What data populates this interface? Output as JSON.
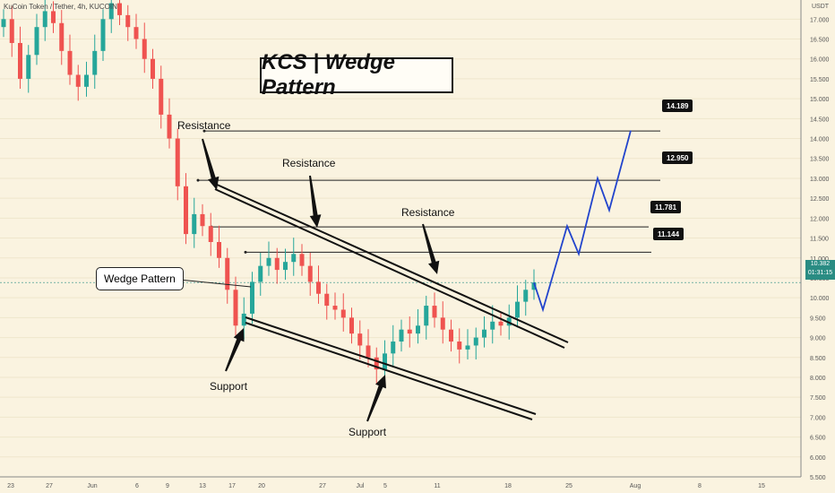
{
  "chart": {
    "ticker": "KuCoin Token / Tether, 4h, KUCOIN",
    "title": "KCS | Wedge Pattern",
    "quote_unit": "USDT",
    "wedge_label": "Wedge Pattern",
    "callouts": [
      "Resistance",
      "Resistance",
      "Resistance",
      "Support",
      "Support"
    ],
    "price_tags": [
      "14.189",
      "12.950",
      "11.781",
      "11.144"
    ],
    "current_price": "10.382",
    "countdown": "01:31:15",
    "projection_color": "#2244cc",
    "bull_color": "#26a69a",
    "bear_color": "#ef5350"
  },
  "chart_data": {
    "type": "candlestick",
    "title": "KCS | Wedge Pattern",
    "symbol": "KuCoin Token / Tether",
    "timeframe": "4h",
    "exchange": "KUCOIN",
    "y_ticks": [
      5.5,
      6.0,
      6.5,
      7.0,
      7.5,
      8.0,
      8.5,
      9.0,
      9.5,
      10.0,
      10.5,
      11.0,
      11.5,
      12.0,
      12.5,
      13.0,
      13.5,
      14.0,
      14.5,
      15.0,
      15.5,
      16.0,
      16.5,
      17.0
    ],
    "y_tick_labels": [
      "5.500",
      "6.000",
      "6.500",
      "7.000",
      "7.500",
      "8.000",
      "8.500",
      "9.000",
      "9.500",
      "10.000",
      "10.500",
      "11.000",
      "11.500",
      "12.000",
      "12.500",
      "13.000",
      "13.500",
      "14.000",
      "14.500",
      "15.000",
      "15.500",
      "16.000",
      "16.500",
      "17.000"
    ],
    "x_tick_labels": [
      "23",
      "27",
      "Jun",
      "6",
      "9",
      "13",
      "17",
      "20",
      "27",
      "Jul",
      "5",
      "11",
      "18",
      "25",
      "Aug",
      "8",
      "15"
    ],
    "ylim": [
      5.5,
      17.3
    ],
    "price_line": 10.382,
    "horizontal_levels": [
      14.189,
      12.95,
      11.781,
      11.144
    ],
    "closes": [
      17.0,
      16.4,
      15.5,
      16.1,
      16.8,
      17.2,
      16.9,
      16.2,
      15.6,
      15.3,
      15.6,
      16.2,
      17.0,
      17.4,
      17.1,
      16.8,
      16.5,
      16.0,
      15.5,
      14.6,
      14.0,
      12.8,
      11.6,
      12.1,
      11.8,
      11.4,
      11.0,
      10.2,
      9.3,
      9.6,
      10.4,
      10.8,
      11.0,
      10.7,
      10.9,
      11.1,
      10.8,
      10.4,
      10.1,
      9.8,
      9.7,
      9.5,
      9.1,
      8.8,
      8.5,
      8.2,
      8.6,
      8.9,
      9.2,
      9.1,
      9.3,
      9.8,
      9.5,
      9.2,
      8.9,
      8.7,
      8.8,
      9.0,
      9.2,
      9.4,
      9.3,
      9.5,
      9.9,
      10.2,
      10.382
    ],
    "projection": [
      10.38,
      9.7,
      11.8,
      11.1,
      13.0,
      12.2,
      14.2
    ],
    "annotations": [
      "Resistance",
      "Resistance",
      "Resistance",
      "Support",
      "Support",
      "Wedge Pattern"
    ]
  }
}
